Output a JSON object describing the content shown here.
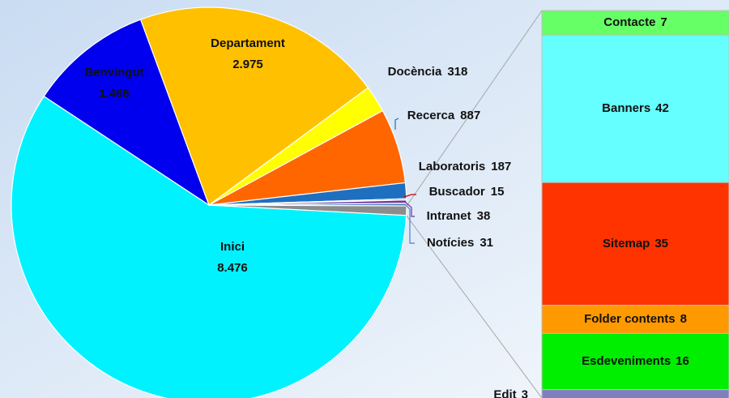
{
  "chart_data": [
    {
      "type": "pie",
      "categories": [
        "Inici",
        "Benvingut",
        "Departament",
        "Docència",
        "Recerca",
        "Laboratoris",
        "Buscador",
        "Intranet",
        "Notícies"
      ],
      "values": [
        8476,
        1466,
        2975,
        318,
        887,
        187,
        15,
        38,
        31
      ],
      "value_labels": [
        "8.476",
        "1.466",
        "2.975",
        "318",
        "887",
        "187",
        "15",
        "38",
        "31"
      ],
      "colors": [
        "#00f2ff",
        "#0000ee",
        "#ffc000",
        "#ffff00",
        "#ff6600",
        "#1f6fc0",
        "#c00000",
        "#7030a0",
        "#4f81bd"
      ],
      "other_color": "#8c8c8c"
    },
    {
      "type": "bar",
      "stacked": true,
      "categories": [
        "Contacte",
        "Banners",
        "Sitemap",
        "Folder contents",
        "Esdeveniments",
        "Edit"
      ],
      "values": [
        7,
        42,
        35,
        8,
        16,
        3
      ],
      "colors": [
        "#66ff66",
        "#66ffff",
        "#ff3300",
        "#ff9900",
        "#00ee00",
        "#7f7fbf"
      ]
    }
  ]
}
